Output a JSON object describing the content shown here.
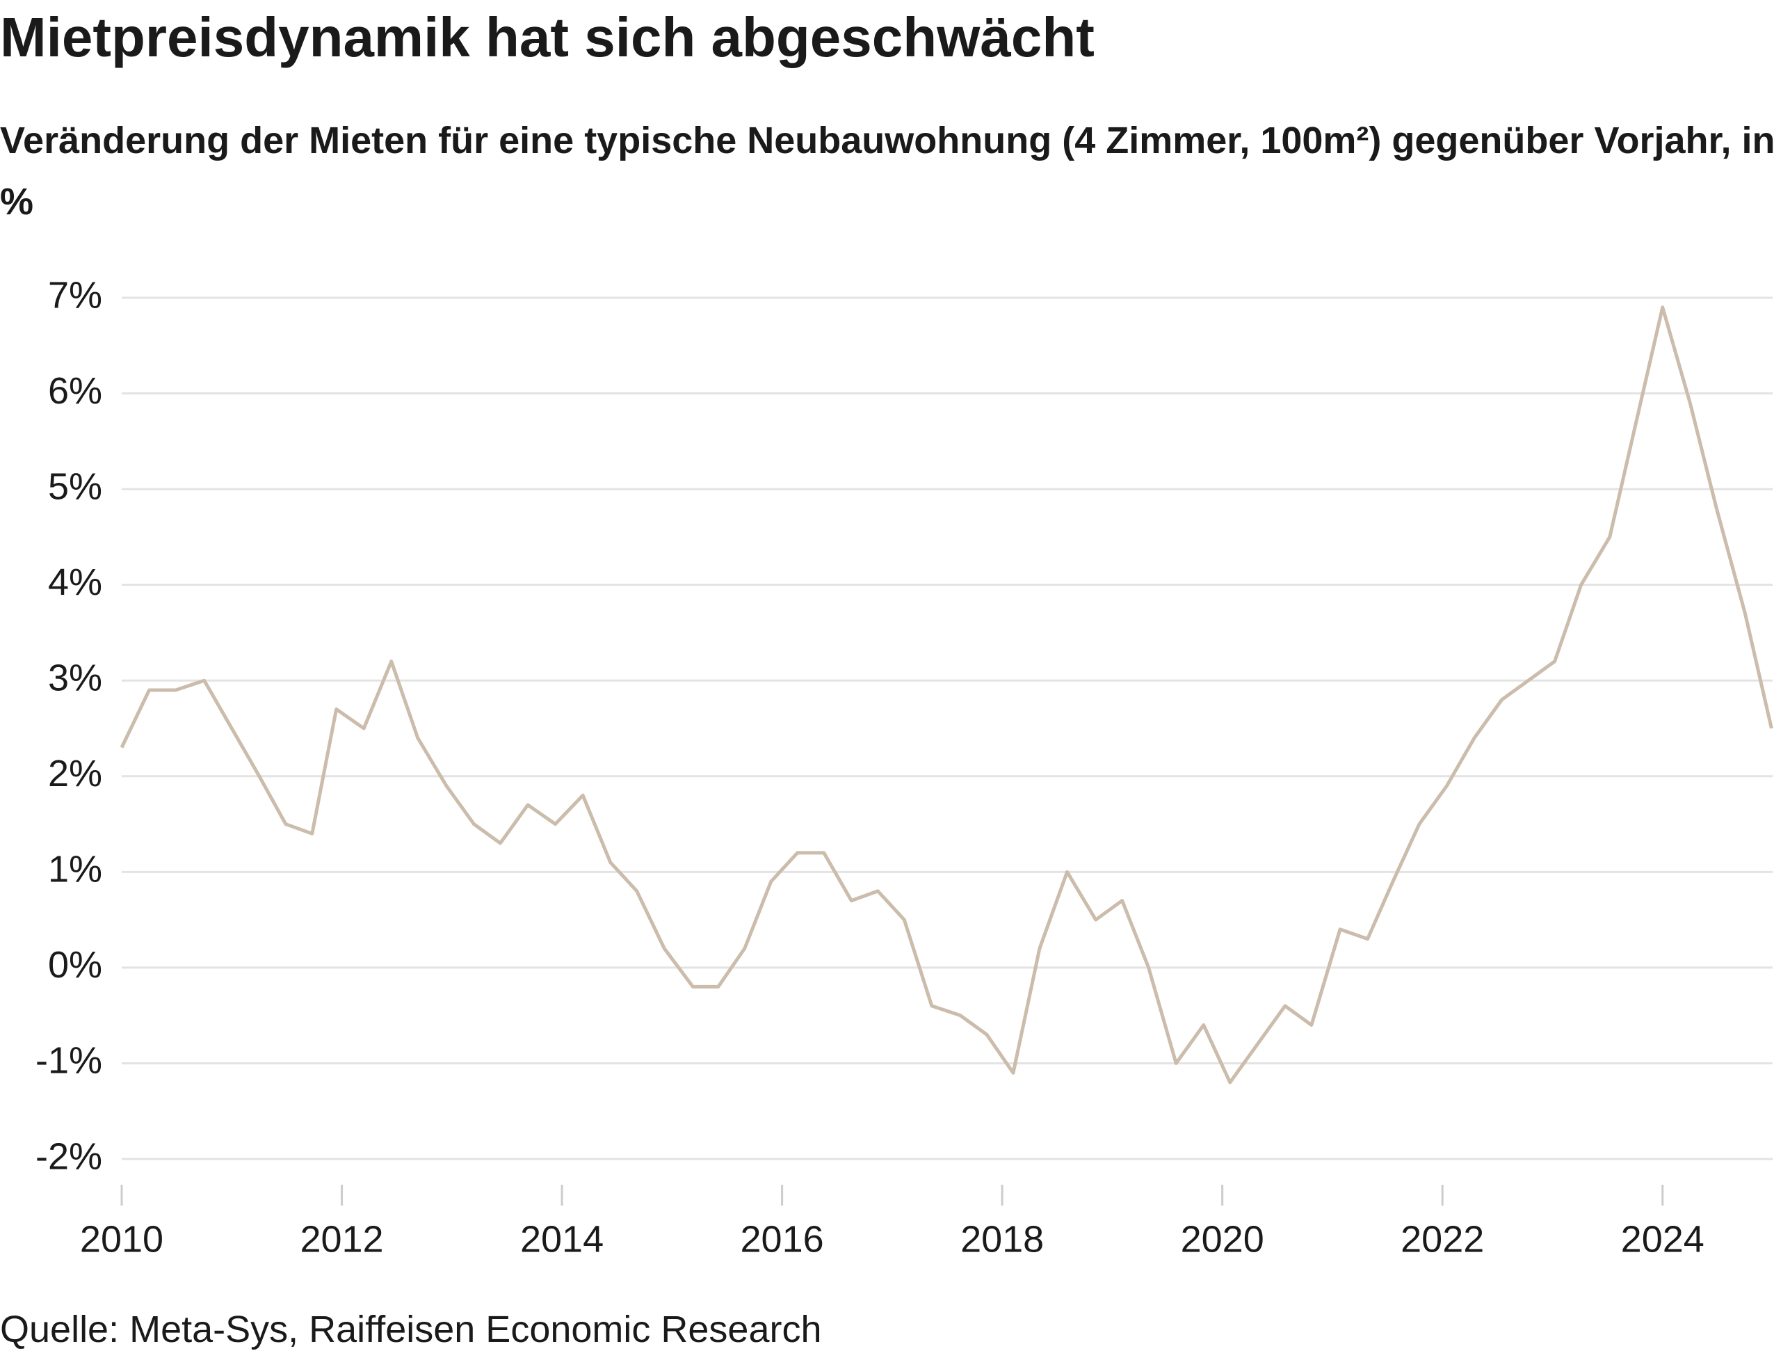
{
  "chart_data": {
    "type": "line",
    "title": "Mietpreisdynamik hat sich abgeschwächt",
    "subtitle": "Veränderung der Mieten für eine typische Neubauwohnung (4 Zimmer, 100m²) gegenüber Vorjahr, in %",
    "source": "Quelle: Meta-Sys, Raiffeisen Economic Research",
    "x": [
      2010.0,
      2010.25,
      2010.49,
      2010.75,
      2011.0,
      2011.25,
      2011.49,
      2011.73,
      2011.95,
      2012.2,
      2012.45,
      2012.69,
      2012.95,
      2013.2,
      2013.44,
      2013.69,
      2013.94,
      2014.19,
      2014.44,
      2014.68,
      2014.93,
      2015.19,
      2015.42,
      2015.66,
      2015.9,
      2016.14,
      2016.38,
      2016.63,
      2016.87,
      2017.11,
      2017.36,
      2017.62,
      2017.86,
      2018.1,
      2018.34,
      2018.59,
      2018.85,
      2019.09,
      2019.33,
      2019.58,
      2019.83,
      2020.07,
      2020.32,
      2020.57,
      2020.81,
      2021.07,
      2021.32,
      2021.55,
      2021.79,
      2022.04,
      2022.29,
      2022.54,
      2022.78,
      2023.02,
      2023.26,
      2023.52,
      2023.76,
      2024.0,
      2024.25,
      2024.49,
      2024.75,
      2024.99
    ],
    "series": [
      {
        "name": "Mieten",
        "color": "#cbbcab",
        "values": [
          2.3,
          2.9,
          2.9,
          3.0,
          2.5,
          2.0,
          1.5,
          1.4,
          2.7,
          2.5,
          3.2,
          2.4,
          1.9,
          1.5,
          1.3,
          1.7,
          1.5,
          1.8,
          1.1,
          0.8,
          0.2,
          -0.2,
          -0.2,
          0.2,
          0.9,
          1.2,
          1.2,
          0.7,
          0.8,
          0.5,
          -0.4,
          -0.5,
          -0.7,
          -1.1,
          0.2,
          1.0,
          0.5,
          0.7,
          0.0,
          -1.0,
          -0.6,
          -1.2,
          -0.8,
          -0.4,
          -0.6,
          0.4,
          0.3,
          0.9,
          1.5,
          1.9,
          2.4,
          2.8,
          3.0,
          3.2,
          4.0,
          4.5,
          5.7,
          6.9,
          5.9,
          4.8,
          3.7,
          2.5
        ]
      }
    ],
    "xlim": [
      2010,
      2025
    ],
    "xticks": [
      2010,
      2012,
      2014,
      2016,
      2018,
      2020,
      2022,
      2024
    ],
    "ylim": [
      -2,
      7
    ],
    "yticks": [
      {
        "value": -2,
        "label": "-2%"
      },
      {
        "value": -1,
        "label": "-1%"
      },
      {
        "value": 0,
        "label": "0%"
      },
      {
        "value": 1,
        "label": "1%"
      },
      {
        "value": 2,
        "label": "2%"
      },
      {
        "value": 3,
        "label": "3%"
      },
      {
        "value": 4,
        "label": "4%"
      },
      {
        "value": 5,
        "label": "5%"
      },
      {
        "value": 6,
        "label": "6%"
      },
      {
        "value": 7,
        "label": "7%"
      }
    ],
    "grid": true
  }
}
